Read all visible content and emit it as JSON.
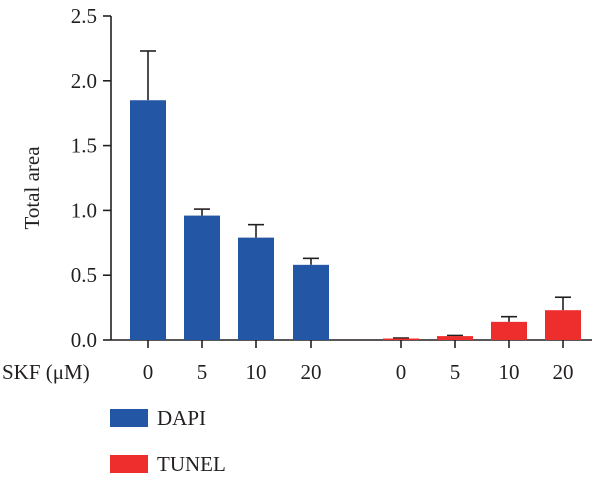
{
  "chart_data": {
    "type": "bar",
    "ylabel": "Total area",
    "xlabel": "SKF (μM)",
    "ylim": [
      0,
      2.5
    ],
    "yticks": [
      0.0,
      0.5,
      1.0,
      1.5,
      2.0,
      2.5
    ],
    "ytick_labels": [
      "0.0",
      "0.5",
      "1.0",
      "1.5",
      "2.0",
      "2.5"
    ],
    "grid": false,
    "legend_position": "bottom-left",
    "series": [
      {
        "name": "DAPI",
        "color": "#2456a6",
        "categories": [
          "0",
          "5",
          "10",
          "20"
        ],
        "values": [
          1.85,
          0.96,
          0.79,
          0.58
        ],
        "errors": [
          0.38,
          0.05,
          0.1,
          0.05
        ]
      },
      {
        "name": "TUNEL",
        "color": "#ee2d2d",
        "categories": [
          "0",
          "5",
          "10",
          "20"
        ],
        "values": [
          0.01,
          0.03,
          0.14,
          0.23
        ],
        "errors": [
          0.005,
          0.005,
          0.04,
          0.1
        ]
      }
    ]
  }
}
